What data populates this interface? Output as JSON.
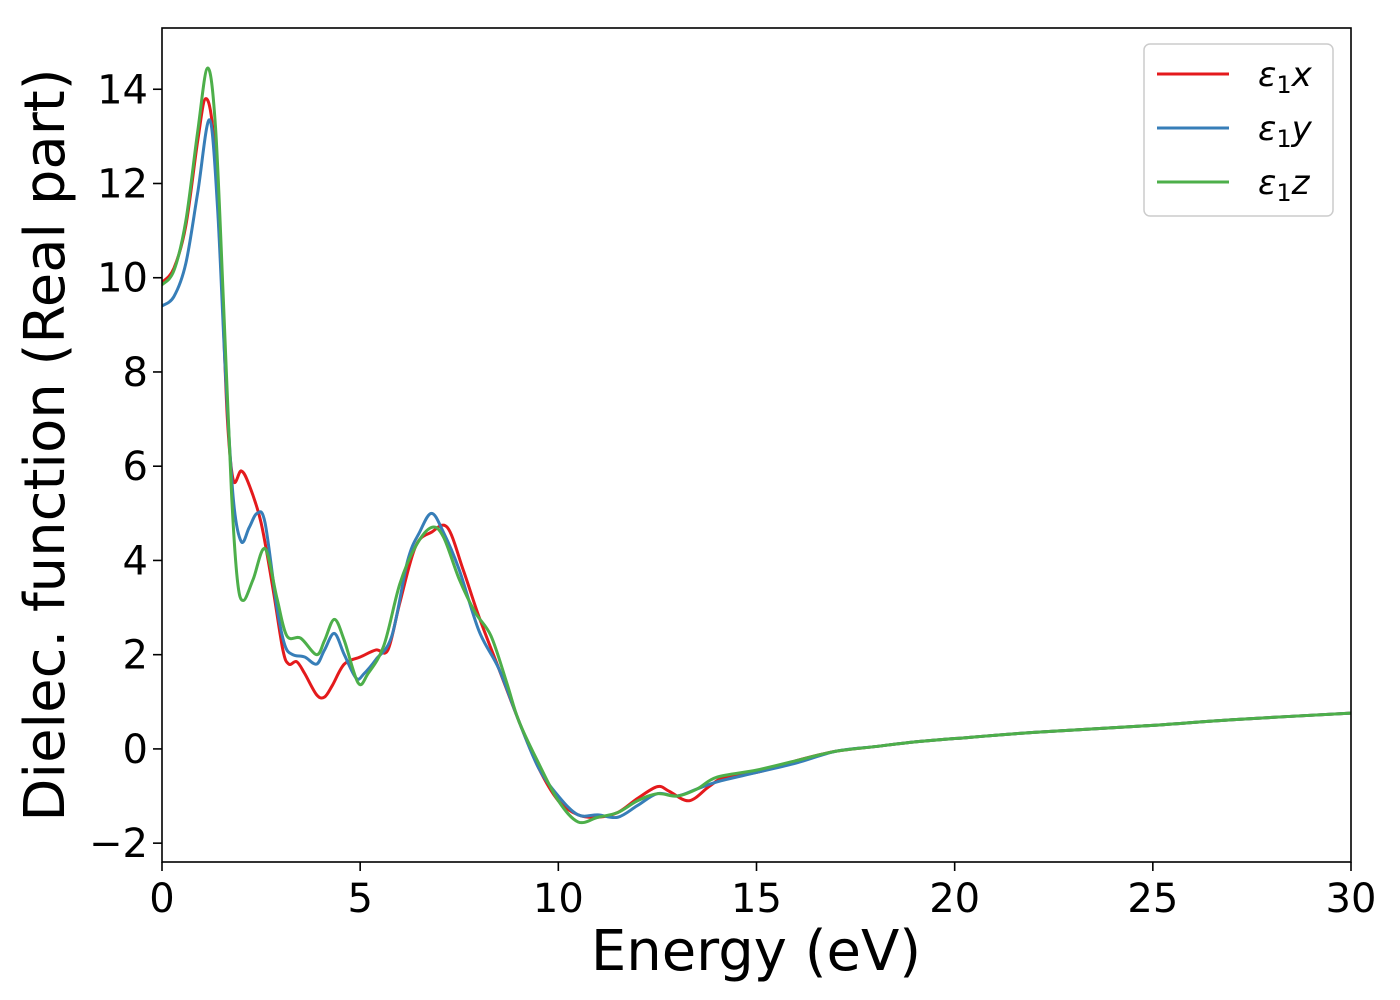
{
  "chart_data": {
    "type": "line",
    "xlabel": "Energy (eV)",
    "ylabel": "Dielec. function (Real part)",
    "xlim": [
      0,
      30
    ],
    "ylim": [
      -2.4,
      15.3
    ],
    "x_ticks": [
      0,
      5,
      10,
      15,
      20,
      25,
      30
    ],
    "x_tick_labels": [
      "0",
      "5",
      "10",
      "15",
      "20",
      "25",
      "30"
    ],
    "y_ticks": [
      -2,
      0,
      2,
      4,
      6,
      8,
      10,
      12,
      14
    ],
    "y_tick_labels": [
      "−2",
      "0",
      "2",
      "4",
      "6",
      "8",
      "10",
      "12",
      "14"
    ],
    "grid": false,
    "legend_position": "top-right",
    "series": [
      {
        "name": "ε₁x",
        "legend_base": "ε",
        "legend_sub": "1",
        "legend_suffix": "x",
        "color": "#e41a1c",
        "points": [
          [
            0,
            9.9
          ],
          [
            0.3,
            10.2
          ],
          [
            0.6,
            11.1
          ],
          [
            0.9,
            12.9
          ],
          [
            1.1,
            13.8
          ],
          [
            1.3,
            13.0
          ],
          [
            1.5,
            10.0
          ],
          [
            1.65,
            7.0
          ],
          [
            1.8,
            5.7
          ],
          [
            2.0,
            5.9
          ],
          [
            2.2,
            5.6
          ],
          [
            2.5,
            4.8
          ],
          [
            2.8,
            3.4
          ],
          [
            3.05,
            2.1
          ],
          [
            3.2,
            1.8
          ],
          [
            3.4,
            1.85
          ],
          [
            3.6,
            1.6
          ],
          [
            3.9,
            1.15
          ],
          [
            4.1,
            1.1
          ],
          [
            4.3,
            1.35
          ],
          [
            4.6,
            1.8
          ],
          [
            5.0,
            1.95
          ],
          [
            5.4,
            2.1
          ],
          [
            5.7,
            2.1
          ],
          [
            6.0,
            3.1
          ],
          [
            6.4,
            4.3
          ],
          [
            6.8,
            4.6
          ],
          [
            7.2,
            4.7
          ],
          [
            7.6,
            3.8
          ],
          [
            8.0,
            2.8
          ],
          [
            8.5,
            1.7
          ],
          [
            9.0,
            0.6
          ],
          [
            9.5,
            -0.4
          ],
          [
            10.0,
            -1.1
          ],
          [
            10.5,
            -1.4
          ],
          [
            11.0,
            -1.45
          ],
          [
            11.5,
            -1.35
          ],
          [
            12.0,
            -1.05
          ],
          [
            12.5,
            -0.8
          ],
          [
            12.8,
            -0.9
          ],
          [
            13.3,
            -1.1
          ],
          [
            13.8,
            -0.8
          ],
          [
            14.2,
            -0.6
          ],
          [
            15.0,
            -0.5
          ],
          [
            16.0,
            -0.25
          ],
          [
            17.0,
            -0.05
          ],
          [
            18.0,
            0.05
          ],
          [
            19.0,
            0.15
          ],
          [
            20.0,
            0.22
          ],
          [
            22.0,
            0.35
          ],
          [
            25.0,
            0.5
          ],
          [
            27.0,
            0.62
          ],
          [
            30.0,
            0.76
          ]
        ]
      },
      {
        "name": "ε₁y",
        "legend_base": "ε",
        "legend_sub": "1",
        "legend_suffix": "y",
        "color": "#377eb8",
        "points": [
          [
            0,
            9.4
          ],
          [
            0.3,
            9.6
          ],
          [
            0.6,
            10.3
          ],
          [
            0.9,
            11.8
          ],
          [
            1.2,
            13.35
          ],
          [
            1.4,
            11.5
          ],
          [
            1.6,
            8.0
          ],
          [
            1.8,
            5.3
          ],
          [
            2.0,
            4.4
          ],
          [
            2.2,
            4.7
          ],
          [
            2.4,
            5.0
          ],
          [
            2.6,
            4.8
          ],
          [
            2.9,
            3.0
          ],
          [
            3.1,
            2.2
          ],
          [
            3.3,
            2.0
          ],
          [
            3.6,
            1.95
          ],
          [
            3.9,
            1.8
          ],
          [
            4.1,
            2.1
          ],
          [
            4.35,
            2.45
          ],
          [
            4.6,
            2.0
          ],
          [
            4.9,
            1.5
          ],
          [
            5.1,
            1.6
          ],
          [
            5.4,
            1.9
          ],
          [
            5.8,
            2.4
          ],
          [
            6.2,
            4.0
          ],
          [
            6.5,
            4.6
          ],
          [
            6.8,
            5.0
          ],
          [
            7.1,
            4.6
          ],
          [
            7.5,
            3.8
          ],
          [
            8.0,
            2.5
          ],
          [
            8.5,
            1.7
          ],
          [
            9.0,
            0.6
          ],
          [
            9.5,
            -0.4
          ],
          [
            10.0,
            -1.0
          ],
          [
            10.5,
            -1.4
          ],
          [
            11.0,
            -1.4
          ],
          [
            11.5,
            -1.45
          ],
          [
            12.0,
            -1.2
          ],
          [
            12.5,
            -0.95
          ],
          [
            13.0,
            -1.0
          ],
          [
            13.5,
            -0.85
          ],
          [
            14.0,
            -0.7
          ],
          [
            15.0,
            -0.5
          ],
          [
            16.0,
            -0.3
          ],
          [
            17.0,
            -0.05
          ],
          [
            18.0,
            0.05
          ],
          [
            19.0,
            0.15
          ],
          [
            20.0,
            0.22
          ],
          [
            22.0,
            0.35
          ],
          [
            25.0,
            0.5
          ],
          [
            27.0,
            0.62
          ],
          [
            30.0,
            0.76
          ]
        ]
      },
      {
        "name": "ε₁z",
        "legend_base": "ε",
        "legend_sub": "1",
        "legend_suffix": "z",
        "color": "#4daf4a",
        "points": [
          [
            0,
            9.85
          ],
          [
            0.3,
            10.15
          ],
          [
            0.6,
            11.2
          ],
          [
            0.9,
            13.1
          ],
          [
            1.15,
            14.45
          ],
          [
            1.35,
            13.2
          ],
          [
            1.55,
            9.5
          ],
          [
            1.75,
            5.5
          ],
          [
            1.9,
            3.6
          ],
          [
            2.05,
            3.15
          ],
          [
            2.3,
            3.6
          ],
          [
            2.6,
            4.25
          ],
          [
            2.9,
            3.2
          ],
          [
            3.15,
            2.4
          ],
          [
            3.5,
            2.35
          ],
          [
            3.9,
            2.0
          ],
          [
            4.1,
            2.3
          ],
          [
            4.35,
            2.75
          ],
          [
            4.6,
            2.3
          ],
          [
            4.95,
            1.4
          ],
          [
            5.2,
            1.6
          ],
          [
            5.6,
            2.2
          ],
          [
            6.0,
            3.5
          ],
          [
            6.4,
            4.3
          ],
          [
            6.8,
            4.7
          ],
          [
            7.1,
            4.5
          ],
          [
            7.5,
            3.6
          ],
          [
            7.9,
            2.9
          ],
          [
            8.3,
            2.4
          ],
          [
            8.7,
            1.4
          ],
          [
            9.0,
            0.6
          ],
          [
            9.5,
            -0.3
          ],
          [
            10.0,
            -1.1
          ],
          [
            10.5,
            -1.55
          ],
          [
            11.0,
            -1.45
          ],
          [
            11.5,
            -1.35
          ],
          [
            12.0,
            -1.1
          ],
          [
            12.5,
            -0.95
          ],
          [
            13.0,
            -1.0
          ],
          [
            13.5,
            -0.85
          ],
          [
            14.0,
            -0.6
          ],
          [
            15.0,
            -0.45
          ],
          [
            16.0,
            -0.25
          ],
          [
            17.0,
            -0.05
          ],
          [
            18.0,
            0.05
          ],
          [
            19.0,
            0.15
          ],
          [
            20.0,
            0.22
          ],
          [
            22.0,
            0.35
          ],
          [
            25.0,
            0.5
          ],
          [
            27.0,
            0.62
          ],
          [
            30.0,
            0.76
          ]
        ]
      }
    ]
  }
}
